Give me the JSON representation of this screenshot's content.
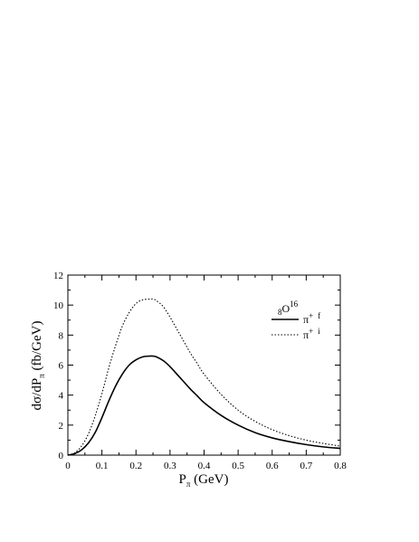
{
  "chart_data": {
    "type": "line",
    "title": "",
    "xlabel_main": "P",
    "xlabel_sub": "π",
    "xlabel_unit": " (GeV)",
    "ylabel_main": "dσ/dP",
    "ylabel_sub": "π",
    "ylabel_unit": " (fb/GeV)",
    "xlim": [
      0,
      0.8
    ],
    "ylim": [
      0,
      12
    ],
    "xticks": [
      "0",
      "0.1",
      "0.2",
      "0.3",
      "0.4",
      "0.5",
      "0.6",
      "0.7",
      "0.8"
    ],
    "yticks": [
      "0",
      "2",
      "4",
      "6",
      "8",
      "10",
      "12"
    ],
    "grid": false,
    "legend_placement": "top-right",
    "legend_header": {
      "pre_sub": "8",
      "main": "O",
      "sup": "16"
    },
    "series": [
      {
        "name": "π⁺ f",
        "legend_main": "π",
        "legend_sup": "+",
        "legend_sub": "f",
        "style": "solid",
        "color": "#000000",
        "x": [
          0,
          0.02,
          0.04,
          0.06,
          0.08,
          0.1,
          0.12,
          0.14,
          0.16,
          0.18,
          0.2,
          0.22,
          0.24,
          0.25,
          0.26,
          0.28,
          0.3,
          0.32,
          0.34,
          0.36,
          0.38,
          0.4,
          0.45,
          0.5,
          0.55,
          0.6,
          0.65,
          0.7,
          0.75,
          0.8
        ],
        "y": [
          0,
          0.1,
          0.35,
          0.8,
          1.5,
          2.5,
          3.6,
          4.6,
          5.4,
          6.0,
          6.35,
          6.55,
          6.6,
          6.6,
          6.55,
          6.3,
          5.9,
          5.4,
          4.9,
          4.4,
          3.95,
          3.5,
          2.65,
          2.0,
          1.5,
          1.15,
          0.9,
          0.7,
          0.55,
          0.45
        ]
      },
      {
        "name": "π⁺ i",
        "legend_main": "π",
        "legend_sup": "+",
        "legend_sub": "i",
        "style": "dotted",
        "color": "#000000",
        "x": [
          0,
          0.02,
          0.04,
          0.06,
          0.08,
          0.1,
          0.12,
          0.14,
          0.16,
          0.18,
          0.2,
          0.22,
          0.24,
          0.25,
          0.26,
          0.28,
          0.3,
          0.32,
          0.34,
          0.36,
          0.38,
          0.4,
          0.45,
          0.5,
          0.55,
          0.6,
          0.65,
          0.7,
          0.75,
          0.8
        ],
        "y": [
          0,
          0.15,
          0.6,
          1.4,
          2.6,
          4.1,
          5.8,
          7.3,
          8.6,
          9.5,
          10.1,
          10.35,
          10.4,
          10.4,
          10.3,
          9.9,
          9.2,
          8.4,
          7.6,
          6.8,
          6.1,
          5.4,
          4.05,
          3.0,
          2.25,
          1.7,
          1.3,
          1.0,
          0.78,
          0.6
        ]
      }
    ]
  }
}
